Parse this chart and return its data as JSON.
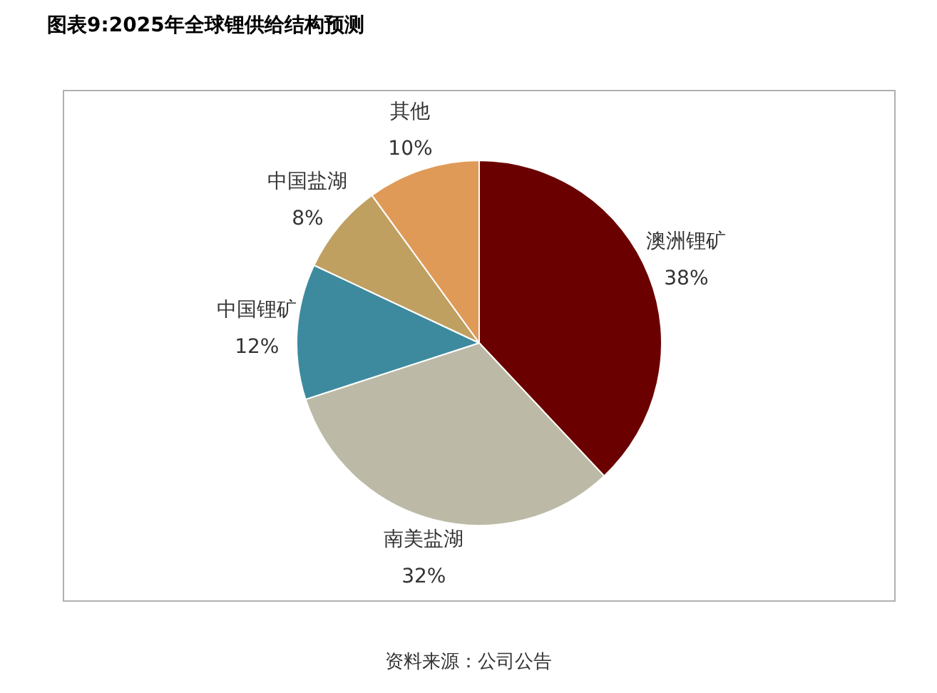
{
  "chart_data": {
    "type": "pie",
    "title": "图表9:2025年全球锂供给结构预测",
    "categories": [
      "澳洲锂矿",
      "南美盐湖",
      "中国锂矿",
      "中国盐湖",
      "其他"
    ],
    "values": [
      38,
      32,
      12,
      8,
      10
    ],
    "value_labels": [
      "38%",
      "32%",
      "12%",
      "8%",
      "10%"
    ],
    "colors": [
      "#6b0000",
      "#bcbaa6",
      "#3d8a9e",
      "#bfa061",
      "#e09a58"
    ],
    "legend": false,
    "annotations": [
      "资料来源：公司公告"
    ]
  }
}
